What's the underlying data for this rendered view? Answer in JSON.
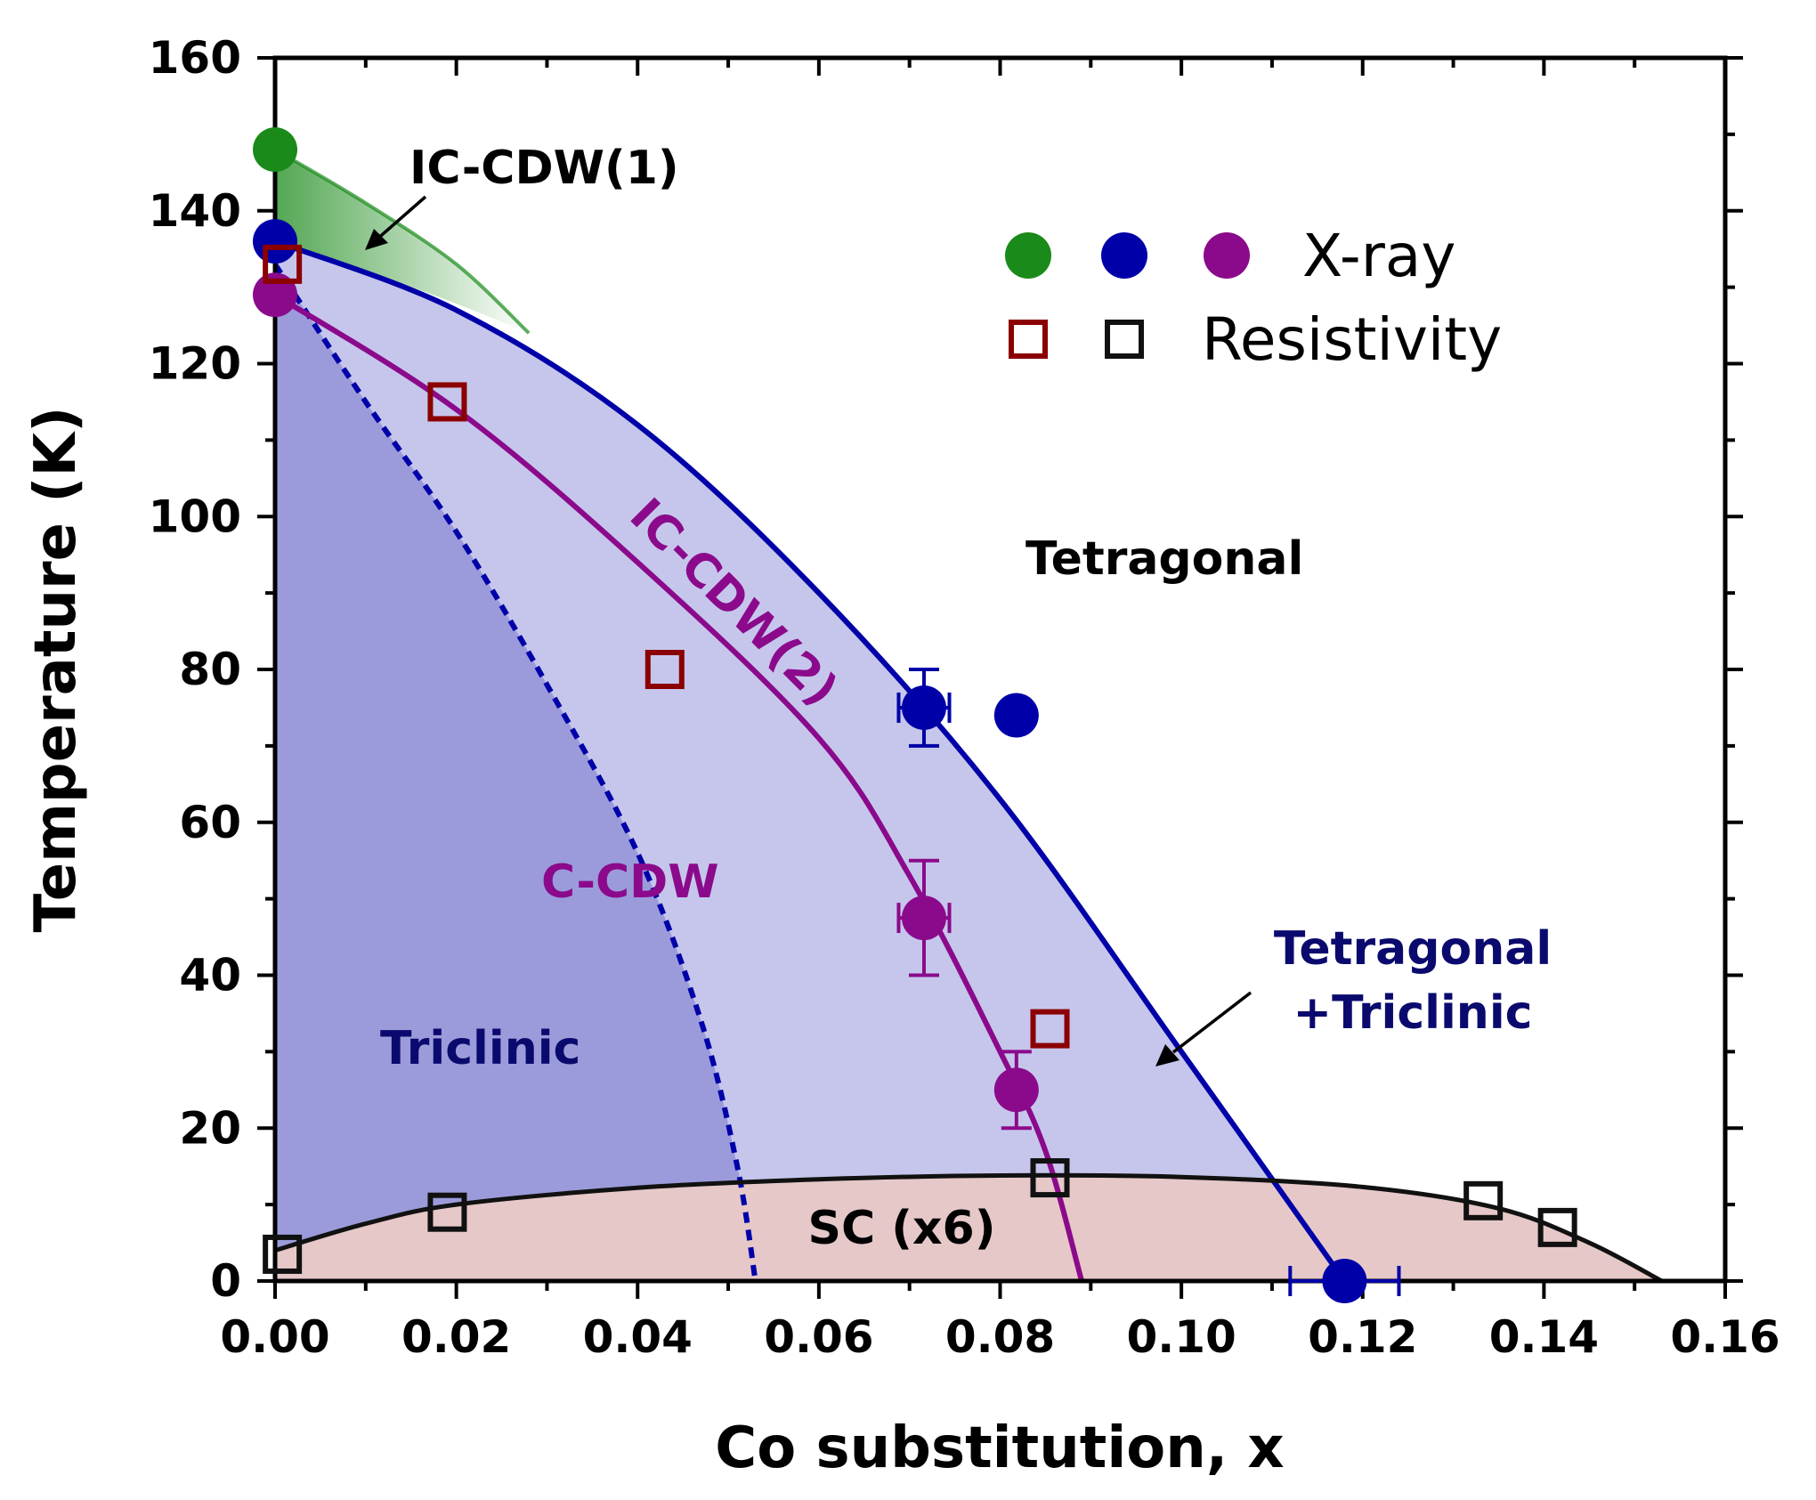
{
  "chart_data": {
    "type": "scatter",
    "title": "",
    "xlabel": "Co substitution, x",
    "ylabel": "Temperature (K)",
    "xlim": [
      0,
      0.16
    ],
    "ylim": [
      0,
      160
    ],
    "xticks": [
      "0.00",
      "0.02",
      "0.04",
      "0.06",
      "0.08",
      "0.10",
      "0.12",
      "0.14",
      "0.16"
    ],
    "yticks": [
      "0",
      "20",
      "40",
      "60",
      "80",
      "100",
      "120",
      "140",
      "160"
    ],
    "xtick_values": [
      0,
      0.02,
      0.04,
      0.06,
      0.08,
      0.1,
      0.12,
      0.14,
      0.16
    ],
    "ytick_values": [
      0,
      20,
      40,
      60,
      80,
      100,
      120,
      140,
      160
    ],
    "grid": false,
    "legend_position": "top-right",
    "legend": {
      "xray_label": "X-ray",
      "resistivity_label": "Resistivity",
      "xray_colors": [
        "#1a8a1a",
        "#0000a8",
        "#8b0a8b"
      ],
      "resistivity_colors": [
        "#8b0000",
        "#111111"
      ]
    },
    "series": [
      {
        "name": "X-ray IC-CDW(1)",
        "marker": "filled-circle",
        "color": "#1a8a1a",
        "points": [
          {
            "x": 0.0,
            "y": 148
          }
        ]
      },
      {
        "name": "X-ray structural (tetragonal-triclinic)",
        "marker": "filled-circle",
        "color": "#0000a8",
        "points": [
          {
            "x": 0.0,
            "y": 136
          },
          {
            "x": 0.0716,
            "y": 75,
            "yerr": 5,
            "xerr": 0.0028
          },
          {
            "x": 0.0818,
            "y": 74
          },
          {
            "x": 0.118,
            "y": 0,
            "xerr": 0.006
          }
        ]
      },
      {
        "name": "X-ray IC-CDW(2)",
        "marker": "filled-circle",
        "color": "#8b0a8b",
        "points": [
          {
            "x": 0.0,
            "y": 129
          },
          {
            "x": 0.0716,
            "y": 47.5,
            "yerr": 7.5,
            "xerr": 0.0028
          },
          {
            "x": 0.0818,
            "y": 25,
            "yerr": 5
          }
        ]
      },
      {
        "name": "Resistivity CDW",
        "marker": "open-square",
        "color": "#8b0000",
        "points": [
          {
            "x": 0.0008,
            "y": 133
          },
          {
            "x": 0.019,
            "y": 115
          },
          {
            "x": 0.043,
            "y": 80
          },
          {
            "x": 0.0855,
            "y": 33
          }
        ]
      },
      {
        "name": "Resistivity SC",
        "marker": "open-square",
        "color": "#111111",
        "points": [
          {
            "x": 0.0008,
            "y": 3.5
          },
          {
            "x": 0.019,
            "y": 9
          },
          {
            "x": 0.0855,
            "y": 13.5
          },
          {
            "x": 0.1333,
            "y": 10.5
          },
          {
            "x": 0.1415,
            "y": 7
          }
        ]
      }
    ],
    "boundaries": [
      {
        "name": "tetragonal-triclinic",
        "style": "solid",
        "color": "#0000a8",
        "points": [
          [
            0,
            136
          ],
          [
            0.02,
            127
          ],
          [
            0.04,
            112
          ],
          [
            0.06,
            90
          ],
          [
            0.08,
            63
          ],
          [
            0.1,
            30
          ],
          [
            0.118,
            0
          ]
        ]
      },
      {
        "name": "IC-CDW(2)",
        "style": "solid",
        "color": "#8b0a8b",
        "points": [
          [
            0,
            129
          ],
          [
            0.02,
            114
          ],
          [
            0.04,
            94
          ],
          [
            0.06,
            71
          ],
          [
            0.07,
            53
          ],
          [
            0.08,
            30
          ],
          [
            0.085,
            17
          ],
          [
            0.089,
            0
          ]
        ]
      },
      {
        "name": "C-CDW",
        "style": "dashed",
        "color": "#0000a8",
        "points": [
          [
            0,
            133
          ],
          [
            0.01,
            115
          ],
          [
            0.02,
            98
          ],
          [
            0.03,
            78
          ],
          [
            0.04,
            56
          ],
          [
            0.047,
            34
          ],
          [
            0.051,
            15
          ],
          [
            0.053,
            0
          ]
        ]
      },
      {
        "name": "SC (x6)",
        "style": "solid",
        "color": "#111111",
        "points": [
          [
            0,
            4
          ],
          [
            0.01,
            7.5
          ],
          [
            0.02,
            10
          ],
          [
            0.04,
            12.2
          ],
          [
            0.06,
            13.3
          ],
          [
            0.08,
            13.8
          ],
          [
            0.1,
            13.6
          ],
          [
            0.12,
            12.3
          ],
          [
            0.135,
            9.5
          ],
          [
            0.145,
            5
          ],
          [
            0.153,
            0
          ]
        ]
      },
      {
        "name": "IC-CDW(1)",
        "style": "gradient-fill",
        "color": "#1a8a1a",
        "points": [
          [
            0,
            148
          ],
          [
            0.01,
            141
          ],
          [
            0.02,
            133
          ],
          [
            0.028,
            124
          ]
        ]
      }
    ],
    "annotations": {
      "ic_cdw1": "IC-CDW(1)",
      "ic_cdw2": "IC-CDW(2)",
      "c_cdw": "C-CDW",
      "triclinic": "Triclinic",
      "tetragonal": "Tetragonal",
      "tet_tric_line1": "Tetragonal",
      "tet_tric_line2": "+Triclinic",
      "sc": "SC (x6)"
    },
    "colors": {
      "triclinic_fill": "#9b9bdb",
      "mixed_fill": "#c6c6ec",
      "sc_fill": "#e6c8c8",
      "cdw1_fill": "#1a8a1a",
      "navy_text": "#0a0a6e",
      "purple_text": "#8b0a8b"
    }
  }
}
